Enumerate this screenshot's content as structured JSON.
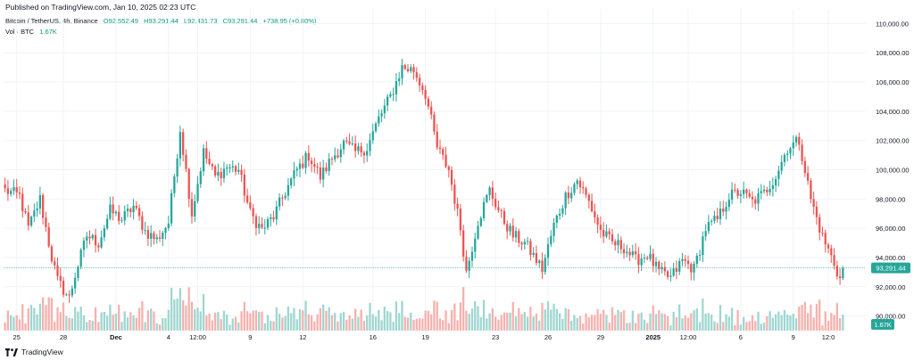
{
  "header": {
    "published": "Published on TradingView.com, Jan 10, 2025 02:23 UTC"
  },
  "legend": {
    "symbol": "Bitcoin / TetherUS, 4h, Binance",
    "open": "O92,552.49",
    "high": "H93,291.44",
    "low": "L92,431.73",
    "close": "C93,291.44",
    "change": "+738.95 (+0.80%)",
    "volume_label": "Vol · BTC",
    "volume_value": "1.67K"
  },
  "footer": {
    "brand": "TradingView"
  },
  "colors": {
    "up": "#26a69a",
    "down": "#ef5350",
    "up_vol": "#9fd6d0",
    "down_vol": "#f6b1ae",
    "price_line": "#26a69a",
    "grid": "#f0f3fa"
  },
  "chart_data": {
    "type": "candlestick",
    "ylim": [
      89000,
      111000
    ],
    "y_ticks": [
      "110,000.00",
      "108,000.00",
      "106,000.00",
      "104,000.00",
      "102,000.00",
      "100,000.00",
      "98,000.00",
      "96,000.00",
      "94,000.00",
      "92,000.00",
      "90,000.00"
    ],
    "y_tick_values": [
      110000,
      108000,
      106000,
      104000,
      102000,
      100000,
      98000,
      96000,
      94000,
      92000,
      90000
    ],
    "x_ticks": [
      "25",
      "28",
      "Dec",
      "4",
      "12:00",
      "9",
      "12",
      "16",
      "19",
      "23",
      "26",
      "29",
      "2025",
      "12:00",
      "6",
      "9",
      "12:0"
    ],
    "x_tick_index": [
      4,
      20,
      38,
      56,
      66,
      84,
      102,
      126,
      144,
      168,
      186,
      204,
      222,
      234,
      252,
      270,
      282
    ],
    "last_price": 93291.44,
    "last_price_label": "93,291.44",
    "last_volume_label": "1.67K",
    "x_domain": [
      0,
      287
    ],
    "anchors": [
      [
        0,
        98600
      ],
      [
        5,
        98200
      ],
      [
        8,
        96000
      ],
      [
        12,
        98000
      ],
      [
        16,
        94000
      ],
      [
        18,
        92400
      ],
      [
        22,
        91200
      ],
      [
        24,
        92800
      ],
      [
        28,
        95500
      ],
      [
        32,
        95000
      ],
      [
        36,
        97200
      ],
      [
        40,
        96600
      ],
      [
        44,
        97500
      ],
      [
        48,
        95800
      ],
      [
        52,
        95200
      ],
      [
        56,
        96400
      ],
      [
        60,
        102800
      ],
      [
        64,
        97000
      ],
      [
        68,
        101200
      ],
      [
        72,
        99500
      ],
      [
        76,
        100200
      ],
      [
        80,
        100000
      ],
      [
        84,
        97000
      ],
      [
        88,
        95900
      ],
      [
        92,
        96800
      ],
      [
        96,
        98500
      ],
      [
        100,
        100000
      ],
      [
        104,
        101000
      ],
      [
        108,
        99500
      ],
      [
        112,
        100800
      ],
      [
        116,
        101800
      ],
      [
        120,
        101200
      ],
      [
        124,
        101500
      ],
      [
        128,
        103500
      ],
      [
        132,
        105000
      ],
      [
        136,
        107000
      ],
      [
        140,
        106800
      ],
      [
        144,
        105200
      ],
      [
        148,
        101500
      ],
      [
        152,
        100000
      ],
      [
        156,
        96000
      ],
      [
        158,
        93000
      ],
      [
        162,
        96500
      ],
      [
        166,
        98600
      ],
      [
        170,
        96800
      ],
      [
        174,
        95500
      ],
      [
        178,
        95000
      ],
      [
        182,
        93800
      ],
      [
        184,
        93200
      ],
      [
        188,
        96200
      ],
      [
        192,
        98200
      ],
      [
        196,
        99300
      ],
      [
        200,
        97800
      ],
      [
        204,
        95800
      ],
      [
        208,
        95000
      ],
      [
        212,
        94700
      ],
      [
        216,
        93800
      ],
      [
        220,
        94200
      ],
      [
        224,
        93000
      ],
      [
        228,
        92600
      ],
      [
        232,
        93800
      ],
      [
        236,
        93200
      ],
      [
        240,
        96000
      ],
      [
        244,
        96600
      ],
      [
        248,
        98200
      ],
      [
        252,
        98500
      ],
      [
        256,
        97800
      ],
      [
        260,
        98400
      ],
      [
        264,
        99600
      ],
      [
        268,
        101500
      ],
      [
        272,
        102000
      ],
      [
        276,
        98000
      ],
      [
        280,
        95400
      ],
      [
        284,
        93600
      ],
      [
        286,
        92500
      ],
      [
        287,
        93291
      ]
    ]
  }
}
